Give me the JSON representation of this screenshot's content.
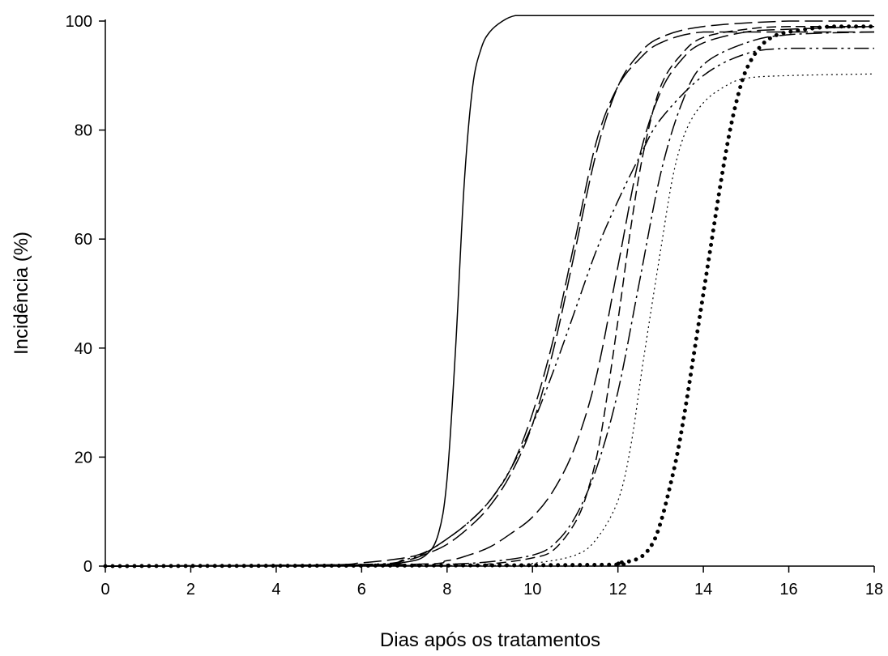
{
  "chart_data": {
    "type": "line",
    "title": "",
    "xlabel": "Dias após os tratamentos",
    "ylabel": "Incidência (%)",
    "xlim": [
      0,
      18
    ],
    "ylim": [
      0,
      100
    ],
    "xticks": [
      "0",
      "2",
      "4",
      "6",
      "8",
      "10",
      "12",
      "14",
      "16",
      "18"
    ],
    "yticks": [
      "0",
      "20",
      "40",
      "60",
      "80",
      "100"
    ],
    "grid": false,
    "legend": "none",
    "series": [
      {
        "style": "solid",
        "x": [
          0,
          6,
          7,
          7.5,
          7.8,
          8.0,
          8.2,
          8.4,
          8.6,
          8.8,
          9.0,
          9.3,
          9.6,
          10,
          12,
          18
        ],
        "y": [
          0,
          0.2,
          0.7,
          2.0,
          6,
          16,
          40,
          70,
          88,
          95,
          98,
          100,
          101,
          101,
          101,
          101
        ]
      },
      {
        "style": "long-dash",
        "x": [
          0,
          5,
          6,
          7,
          7.5,
          8,
          8.5,
          9,
          9.5,
          10,
          10.5,
          11,
          11.5,
          12,
          12.5,
          13,
          14,
          16,
          18
        ],
        "y": [
          0,
          0.2,
          0.6,
          1.5,
          2.6,
          5,
          8,
          12,
          18,
          28,
          42,
          60,
          78,
          88,
          93,
          96,
          98,
          98,
          98
        ]
      },
      {
        "style": "long-dash",
        "x": [
          0,
          6,
          7,
          7.5,
          8,
          8.5,
          9,
          9.5,
          10,
          10.5,
          11,
          11.5,
          12,
          12.5,
          13,
          14,
          16,
          18
        ],
        "y": [
          0,
          0.2,
          1.0,
          2.2,
          4,
          7,
          11,
          17,
          26,
          40,
          58,
          76,
          88,
          94,
          97,
          99,
          100,
          100
        ]
      },
      {
        "style": "dash-dot-dot",
        "x": [
          0,
          6,
          7,
          7.5,
          8,
          8.5,
          9,
          9.5,
          10,
          10.5,
          11,
          11.5,
          12,
          12.5,
          13,
          14,
          15,
          16,
          18
        ],
        "y": [
          0,
          0.3,
          1.2,
          2.5,
          5,
          8,
          12,
          18,
          26,
          36,
          47,
          58,
          67,
          75,
          82,
          90,
          94,
          95,
          95
        ]
      },
      {
        "style": "long-dash",
        "x": [
          0,
          7,
          8,
          8.5,
          9,
          9.5,
          10,
          10.5,
          11,
          11.5,
          12,
          12.5,
          13,
          13.5,
          14,
          15,
          16,
          18
        ],
        "y": [
          0,
          0.3,
          1.0,
          2,
          3.5,
          6,
          9,
          14,
          22,
          35,
          55,
          75,
          87,
          93,
          96,
          98,
          98.5,
          99
        ]
      },
      {
        "style": "dash-dot",
        "x": [
          0,
          7,
          8,
          9,
          10,
          10.5,
          11,
          11.5,
          12,
          12.5,
          13,
          13.5,
          14,
          15,
          16,
          18
        ],
        "y": [
          0,
          0.1,
          0.3,
          0.8,
          2,
          4,
          9,
          18,
          32,
          52,
          72,
          85,
          92,
          96,
          97.5,
          98
        ]
      },
      {
        "style": "dash",
        "x": [
          0,
          8,
          9,
          10,
          10.5,
          11,
          11.3,
          11.6,
          12,
          12.3,
          12.6,
          13,
          13.5,
          14,
          15,
          16,
          18
        ],
        "y": [
          0,
          0.1,
          0.4,
          1.5,
          3,
          8,
          14,
          24,
          45,
          62,
          76,
          88,
          94,
          97,
          98.5,
          99,
          99
        ]
      },
      {
        "style": "thin-dot",
        "x": [
          0,
          9,
          10,
          11,
          11.5,
          12,
          12.3,
          12.6,
          13,
          13.3,
          13.6,
          14,
          14.5,
          15,
          16,
          18
        ],
        "y": [
          0,
          0.1,
          0.5,
          2,
          5,
          12,
          22,
          38,
          58,
          72,
          80,
          85,
          88,
          89.5,
          90,
          90.3
        ]
      },
      {
        "style": "bold-dot",
        "x": [
          0,
          11,
          12,
          12.5,
          12.8,
          13,
          13.2,
          13.4,
          13.6,
          13.8,
          14,
          14.2,
          14.4,
          14.6,
          14.8,
          15,
          15.3,
          15.6,
          16,
          17,
          18
        ],
        "y": [
          0,
          0.2,
          0.6,
          1.5,
          4,
          8,
          14,
          21,
          30,
          40,
          50,
          60,
          70,
          79,
          86,
          91,
          95,
          97,
          98,
          99,
          99
        ]
      }
    ]
  }
}
